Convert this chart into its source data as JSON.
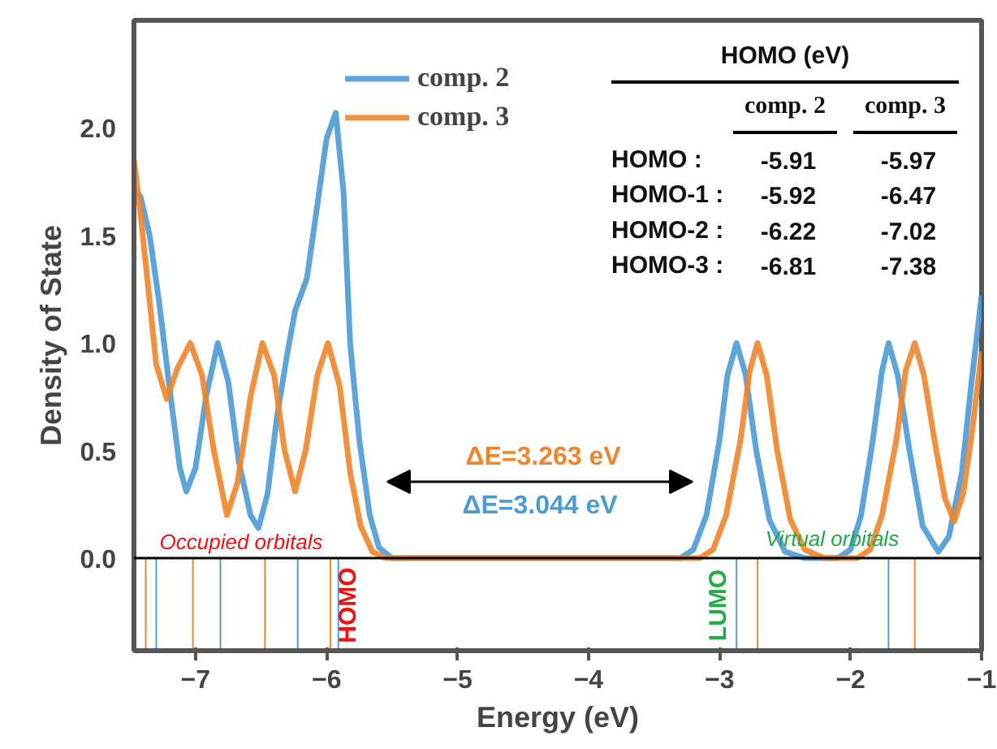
{
  "chart_data": {
    "type": "line",
    "xlabel": "Energy (eV)",
    "ylabel": "Density of State",
    "xlim": [
      -7.47,
      -1
    ],
    "ylim": [
      -0.43,
      2.5
    ],
    "xticks": [
      {
        "value": -7,
        "label": "−7"
      },
      {
        "value": -6,
        "label": "−6"
      },
      {
        "value": -5,
        "label": "−5"
      },
      {
        "value": -4,
        "label": "−4"
      },
      {
        "value": -3,
        "label": "−3"
      },
      {
        "value": -2,
        "label": "−2"
      },
      {
        "value": -1,
        "label": "−1"
      }
    ],
    "yticks": [
      {
        "value": 0,
        "label": "0.0"
      },
      {
        "value": 0.5,
        "label": "0.5"
      },
      {
        "value": 1,
        "label": "1.0"
      },
      {
        "value": 1.5,
        "label": "1.5"
      },
      {
        "value": 2,
        "label": "2.0"
      }
    ],
    "grid": false,
    "legend": "top",
    "marker": "none",
    "line_style": "solid",
    "ref_lines": [
      {
        "axis": "y",
        "value": 0,
        "color": "#000000"
      }
    ],
    "series": [
      {
        "name": "comp. 2",
        "color": "#4a9ad6",
        "x": [
          -7.47,
          -7.42,
          -7.35,
          -7.28,
          -7.2,
          -7.12,
          -7.07,
          -7.0,
          -6.92,
          -6.83,
          -6.75,
          -6.67,
          -6.58,
          -6.52,
          -6.45,
          -6.38,
          -6.3,
          -6.24,
          -6.15,
          -6.08,
          -6.0,
          -5.93,
          -5.87,
          -5.82,
          -5.75,
          -5.67,
          -5.6,
          -5.5,
          -4.0,
          -3.3,
          -3.2,
          -3.1,
          -3.0,
          -2.94,
          -2.87,
          -2.8,
          -2.72,
          -2.62,
          -2.5,
          -2.35,
          -2.1,
          -2.0,
          -1.92,
          -1.83,
          -1.76,
          -1.71,
          -1.64,
          -1.55,
          -1.45,
          -1.33,
          -1.25,
          -1.15,
          -1.08,
          -1.0
        ],
        "values": [
          1.72,
          1.68,
          1.5,
          1.2,
          0.8,
          0.42,
          0.31,
          0.42,
          0.75,
          1.0,
          0.82,
          0.45,
          0.2,
          0.14,
          0.3,
          0.65,
          0.95,
          1.15,
          1.3,
          1.6,
          1.95,
          2.07,
          1.7,
          1.0,
          0.55,
          0.2,
          0.05,
          0.0,
          0.0,
          0.0,
          0.04,
          0.2,
          0.55,
          0.85,
          1.0,
          0.85,
          0.5,
          0.18,
          0.03,
          0.0,
          0.0,
          0.04,
          0.2,
          0.55,
          0.87,
          1.0,
          0.85,
          0.5,
          0.15,
          0.03,
          0.1,
          0.4,
          0.8,
          1.22
        ]
      },
      {
        "name": "comp. 3",
        "color": "#f0842a",
        "x": [
          -7.47,
          -7.42,
          -7.36,
          -7.3,
          -7.22,
          -7.14,
          -7.04,
          -6.95,
          -6.86,
          -6.76,
          -6.68,
          -6.58,
          -6.49,
          -6.4,
          -6.32,
          -6.24,
          -6.16,
          -6.07,
          -5.99,
          -5.9,
          -5.82,
          -5.74,
          -5.65,
          -5.55,
          -4.0,
          -3.15,
          -3.05,
          -2.95,
          -2.84,
          -2.77,
          -2.71,
          -2.64,
          -2.56,
          -2.46,
          -2.35,
          -2.2,
          -1.95,
          -1.85,
          -1.76,
          -1.65,
          -1.58,
          -1.51,
          -1.44,
          -1.36,
          -1.28,
          -1.21,
          -1.14,
          -1.07,
          -1.0
        ],
        "values": [
          1.85,
          1.6,
          1.25,
          0.9,
          0.74,
          0.88,
          1.0,
          0.85,
          0.5,
          0.2,
          0.35,
          0.75,
          1.0,
          0.85,
          0.5,
          0.31,
          0.5,
          0.85,
          1.0,
          0.8,
          0.4,
          0.15,
          0.03,
          0.0,
          0.0,
          0.0,
          0.04,
          0.2,
          0.55,
          0.87,
          1.0,
          0.85,
          0.5,
          0.18,
          0.04,
          0.0,
          0.0,
          0.04,
          0.2,
          0.55,
          0.87,
          1.0,
          0.85,
          0.55,
          0.28,
          0.17,
          0.3,
          0.6,
          0.96
        ]
      },
      {
        "type": "bar",
        "color": "#4a9ad6",
        "x": [
          -7.3,
          -6.81,
          -6.22,
          -5.91,
          -2.87,
          -1.71
        ],
        "values": [
          -0.42,
          -0.42,
          -0.42,
          -0.42,
          -0.42,
          -0.42
        ]
      },
      {
        "type": "bar",
        "color": "#f0842a",
        "x": [
          -7.38,
          -7.02,
          -6.47,
          -5.97,
          -2.71,
          -1.51
        ],
        "values": [
          -0.42,
          -0.42,
          -0.42,
          -0.42,
          -0.42,
          -0.42
        ]
      }
    ],
    "annotations": [
      "HOMO (eV)",
      "comp. 2",
      "comp. 3",
      "HOMO :",
      "-5.91",
      "-5.97",
      "HOMO-1 :",
      "-5.92",
      "-6.47",
      "HOMO-2 :",
      "-6.22",
      "-7.02",
      "HOMO-3 :",
      "-6.81",
      "-7.38",
      "ΔE=3.263 eV",
      "ΔE=3.044 eV",
      "Occupied orbitals",
      "Virtual orbitals",
      "HOMO",
      "LUMO"
    ]
  }
}
